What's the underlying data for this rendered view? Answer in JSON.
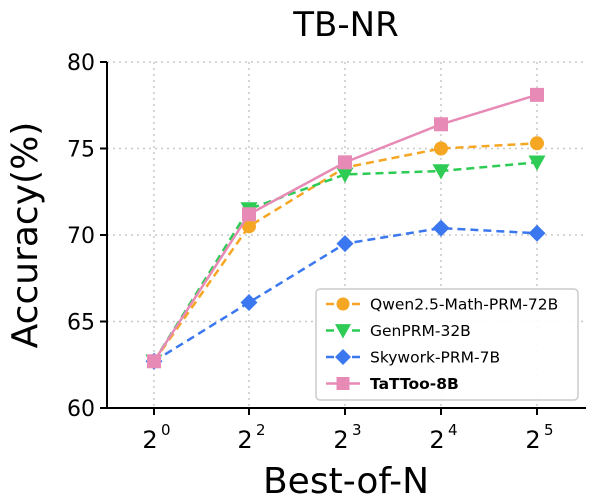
{
  "chart_data": {
    "type": "line",
    "title": "TB-NR",
    "xlabel": "Best-of-N",
    "ylabel": "Accuracy(%)",
    "x_ticks": [
      {
        "base": "2",
        "exp": "0"
      },
      {
        "base": "2",
        "exp": "2"
      },
      {
        "base": "2",
        "exp": "3"
      },
      {
        "base": "2",
        "exp": "4"
      },
      {
        "base": "2",
        "exp": "5"
      }
    ],
    "x": [
      1,
      4,
      8,
      16,
      32
    ],
    "x_scale": "log2",
    "yticks": [
      60,
      65,
      70,
      75,
      80
    ],
    "ylim": [
      60,
      80
    ],
    "grid": true,
    "legend_position": "bottom-right",
    "series": [
      {
        "name": "Qwen2.5-Math-PRM-72B",
        "color": "#f5a623",
        "marker": "circle",
        "dash": "dashed",
        "bold": false,
        "values": [
          62.7,
          70.5,
          73.9,
          75.0,
          75.3
        ]
      },
      {
        "name": "GenPRM-32B",
        "color": "#2ecc55",
        "marker": "triangle-down",
        "dash": "dashed",
        "bold": false,
        "values": [
          62.7,
          71.5,
          73.5,
          73.7,
          74.2
        ]
      },
      {
        "name": "Skywork-PRM-7B",
        "color": "#3b78f0",
        "marker": "diamond",
        "dash": "dashed",
        "bold": false,
        "values": [
          62.7,
          66.1,
          69.5,
          70.4,
          70.1
        ]
      },
      {
        "name": "TaTToo-8B",
        "color": "#e78ab5",
        "marker": "square",
        "dash": "solid",
        "bold": true,
        "values": [
          62.7,
          71.2,
          74.2,
          76.4,
          78.1
        ]
      }
    ]
  }
}
